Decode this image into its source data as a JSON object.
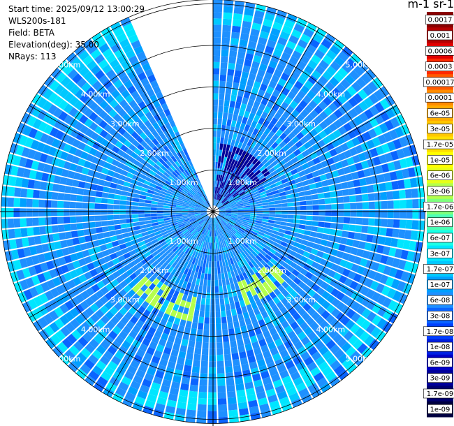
{
  "header": {
    "lines": [
      "Start time: 2025/09/12 13:00:29",
      "WLS200s-181",
      "Field: BETA",
      "Elevation(deg): 35.00",
      "NRays: 113"
    ]
  },
  "colorbar": {
    "title": "m-1 sr-1",
    "labels": [
      "0.0017",
      "0.001",
      "0.0006",
      "0.0003",
      "0.00017",
      "0.0001",
      "6e-05",
      "3e-05",
      "1.7e-05",
      "1e-05",
      "6e-06",
      "3e-06",
      "1.7e-06",
      "1e-06",
      "6e-07",
      "3e-07",
      "1.7e-07",
      "1e-07",
      "6e-08",
      "3e-08",
      "1.7e-08",
      "1e-08",
      "6e-09",
      "3e-09",
      "1.7e-09",
      "1e-09"
    ],
    "colors": [
      "#8b0000",
      "#b40000",
      "#e00000",
      "#ff2a00",
      "#ff5a00",
      "#ff8c00",
      "#ffaa00",
      "#ffc800",
      "#ffe000",
      "#ffff00",
      "#e6ff1a",
      "#b4ff4c",
      "#7dff7d",
      "#4cffb4",
      "#1affe6",
      "#00e6ff",
      "#00c8ff",
      "#00a0ff",
      "#1e90ff",
      "#0a64ff",
      "#0040ff",
      "#0020e0",
      "#0000c8",
      "#00009a",
      "#000070",
      "#000040"
    ]
  },
  "chart_data": {
    "type": "polar-ppi",
    "field": "BETA",
    "elevation_deg": 35.0,
    "n_rays": 113,
    "range_rings_km": [
      1.0,
      2.0,
      3.0,
      4.0,
      5.0
    ],
    "ring_labels": [
      "1.00km",
      "2.00km",
      "3.00km",
      "4.00km",
      "5.00km"
    ],
    "max_range_km": 5.1,
    "gap_azimuth_deg": [
      337,
      360
    ],
    "radials_deg": [
      0,
      30,
      60,
      90,
      120,
      150,
      180,
      210,
      240,
      270,
      300,
      330
    ],
    "background_level": "6e-08",
    "enhanced_regions": [
      {
        "az_from": 190,
        "az_to": 225,
        "r_from_km": 2.1,
        "r_to_km": 2.7,
        "level": "3e-06"
      },
      {
        "az_from": 130,
        "az_to": 160,
        "r_from_km": 1.8,
        "r_to_km": 2.4,
        "level": "3e-06"
      },
      {
        "az_from": 295,
        "az_to": 335,
        "r_from_km": 4.2,
        "r_to_km": 4.9,
        "level": "1.7e-07"
      },
      {
        "az_from": 5,
        "az_to": 60,
        "r_from_km": 0.3,
        "r_to_km": 1.6,
        "level": "3e-09"
      }
    ]
  }
}
